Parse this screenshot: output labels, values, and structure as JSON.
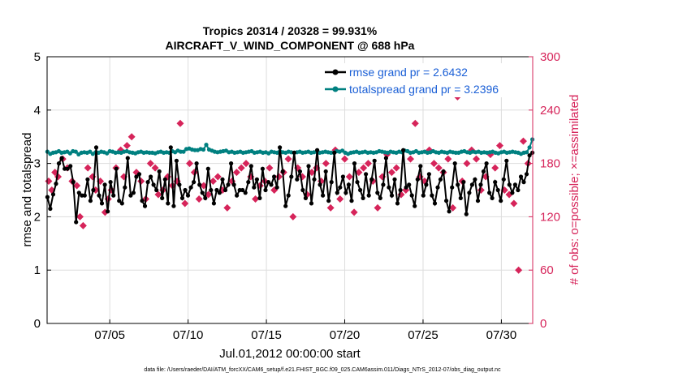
{
  "chart_data": {
    "type": "line",
    "title_line1": "Tropics 20314 / 20328 = 99.931%",
    "title_line2": "AIRCRAFT_V_WIND_COMPONENT @ 688 hPa",
    "xlabel": "Jul.01,2012 00:00:00 start",
    "ylabel_left": "rmse and totalspread",
    "ylabel_right": "# of obs: o=possible; ×=assimilated",
    "footer": "data file: /Users/raeder/DAI/ATM_forcXX/CAM6_setup/f.e21.FHIST_BGC.f09_025.CAM6assim.011/Diags_NTrS_2012-07/obs_diag_output.nc",
    "xlim": [
      1.0,
      32.0
    ],
    "ylim_left": [
      0,
      5
    ],
    "ylim_right": [
      0,
      300
    ],
    "x_ticks": [
      5,
      10,
      15,
      20,
      25,
      30
    ],
    "x_tick_labels": [
      "07/05",
      "07/10",
      "07/15",
      "07/20",
      "07/25",
      "07/30"
    ],
    "y_left_ticks": [
      "0",
      "1",
      "2",
      "3",
      "4",
      "5"
    ],
    "y_right_ticks": [
      "0",
      "60",
      "120",
      "180",
      "240",
      "300"
    ],
    "legend": {
      "rmse_label": "rmse grand pr = 2.6432",
      "spread_label": "totalspread grand pr = 3.2396"
    },
    "colors": {
      "rmse": "#000000",
      "spread": "#008080",
      "obs": "#d6245a",
      "legend_text": "#1a5fd6"
    },
    "series": [
      {
        "name": "rmse",
        "values": [
          2.37,
          2.15,
          2.42,
          2.62,
          3.0,
          3.1,
          2.9,
          2.9,
          2.95,
          2.65,
          1.9,
          2.45,
          2.4,
          2.4,
          2.7,
          2.3,
          2.5,
          3.3,
          2.4,
          2.25,
          2.6,
          2.1,
          2.65,
          2.4,
          2.9,
          2.3,
          2.25,
          2.55,
          3.1,
          2.4,
          2.45,
          2.75,
          2.8,
          2.3,
          2.2,
          2.65,
          2.75,
          2.6,
          2.5,
          2.85,
          2.35,
          2.7,
          2.25,
          3.3,
          2.2,
          3.05,
          2.6,
          2.35,
          2.5,
          2.4,
          2.55,
          2.65,
          3.0,
          2.6,
          2.45,
          2.35,
          2.9,
          2.5,
          2.25,
          2.5,
          2.45,
          2.7,
          2.5,
          2.6,
          3.0,
          2.6,
          2.4,
          2.5,
          2.5,
          2.45,
          2.65,
          2.95,
          2.55,
          2.7,
          2.35,
          2.9,
          2.5,
          2.65,
          2.6,
          2.75,
          2.55,
          3.3,
          2.85,
          2.2,
          2.4,
          2.75,
          3.2,
          2.7,
          2.85,
          2.5,
          2.35,
          2.95,
          2.25,
          2.7,
          3.25,
          2.6,
          2.4,
          2.85,
          2.3,
          2.65,
          3.2,
          2.45,
          2.55,
          2.75,
          2.45,
          2.6,
          2.3,
          3.0,
          2.65,
          2.5,
          2.35,
          2.8,
          2.4,
          2.7,
          3.05,
          2.45,
          2.35,
          2.6,
          3.1,
          2.55,
          2.4,
          2.7,
          2.25,
          2.5,
          3.25,
          2.55,
          2.6,
          2.4,
          2.2,
          2.7,
          2.95,
          2.4,
          2.6,
          2.8,
          2.4,
          2.25,
          2.55,
          2.7,
          2.85,
          2.3,
          2.1,
          2.55,
          3.0,
          2.6,
          2.35,
          2.65,
          2.05,
          2.45,
          2.6,
          2.7,
          2.3,
          2.6,
          2.85,
          3.0,
          2.45,
          2.35,
          2.65,
          2.5,
          2.3,
          2.7,
          3.05,
          2.6,
          2.45,
          2.6,
          2.5,
          2.75,
          2.65,
          2.8,
          3.15,
          3.2
        ]
      },
      {
        "name": "totalspread",
        "values": [
          3.22,
          3.18,
          3.2,
          3.21,
          3.23,
          3.2,
          3.21,
          3.22,
          3.19,
          3.23,
          3.22,
          3.17,
          3.2,
          3.21,
          3.2,
          3.22,
          3.18,
          3.21,
          3.2,
          3.22,
          3.21,
          3.19,
          3.23,
          3.22,
          3.2,
          3.21,
          3.2,
          3.22,
          3.23,
          3.21,
          3.2,
          3.19,
          3.21,
          3.22,
          3.2,
          3.21,
          3.2,
          3.2,
          3.19,
          3.21,
          3.22,
          3.2,
          3.21,
          3.2,
          3.23,
          3.21,
          3.24,
          3.22,
          3.22,
          3.27,
          3.28,
          3.26,
          3.25,
          3.25,
          3.27,
          3.26,
          3.35,
          3.26,
          3.24,
          3.22,
          3.21,
          3.22,
          3.23,
          3.24,
          3.21,
          3.22,
          3.2,
          3.21,
          3.22,
          3.2,
          3.21,
          3.22,
          3.23,
          3.2,
          3.21,
          3.22,
          3.2,
          3.21,
          3.19,
          3.22,
          3.21,
          3.2,
          3.23,
          3.21,
          3.2,
          3.22,
          3.21,
          3.2,
          3.21,
          3.22,
          3.2,
          3.21,
          3.22,
          3.2,
          3.21,
          3.22,
          3.2,
          3.21,
          3.22,
          3.21,
          3.2,
          3.2,
          3.23,
          3.22,
          3.24,
          3.2,
          3.18,
          3.2,
          3.21,
          3.22,
          3.2,
          3.21,
          3.22,
          3.2,
          3.21,
          3.2,
          3.21,
          3.23,
          3.22,
          3.21,
          3.2,
          3.22,
          3.21,
          3.2,
          3.22,
          3.21,
          3.24,
          3.23,
          3.2,
          3.21,
          3.23,
          3.2,
          3.21,
          3.22,
          3.2,
          3.21,
          3.23,
          3.21,
          3.2,
          3.22,
          3.21,
          3.2,
          3.22,
          3.21,
          3.2,
          3.2,
          3.22,
          3.23,
          3.21,
          3.2,
          3.22,
          3.21,
          3.22,
          3.2,
          3.21,
          3.2,
          3.21,
          3.22,
          3.2,
          3.19,
          3.21,
          3.22,
          3.2,
          3.21,
          3.22,
          3.21,
          3.2,
          3.18,
          3.2,
          3.21,
          3.3,
          3.45
        ]
      },
      {
        "name": "obs_assimilated",
        "x": [
          1.1,
          1.3,
          1.5,
          1.7,
          2.0,
          2.3,
          2.6,
          2.9,
          3.1,
          3.3,
          3.6,
          3.9,
          4.1,
          4.4,
          4.7,
          4.9,
          5.1,
          5.4,
          5.7,
          5.9,
          6.1,
          6.4,
          6.7,
          7.0,
          7.3,
          7.6,
          7.9,
          8.1,
          8.4,
          8.7,
          9.0,
          9.3,
          9.5,
          9.8,
          10.1,
          10.4,
          10.7,
          11.0,
          11.3,
          11.6,
          11.9,
          12.2,
          12.5,
          12.8,
          13.1,
          13.4,
          13.7,
          14.0,
          14.3,
          14.6,
          14.9,
          15.2,
          15.5,
          15.8,
          16.1,
          16.4,
          16.7,
          17.0,
          17.3,
          17.6,
          17.9,
          18.2,
          18.5,
          18.8,
          19.1,
          19.4,
          19.7,
          20.0,
          20.3,
          20.6,
          20.9,
          21.2,
          21.5,
          21.8,
          22.1,
          22.4,
          22.7,
          23.0,
          23.3,
          23.6,
          23.9,
          24.2,
          24.5,
          24.8,
          25.1,
          25.4,
          25.7,
          26.0,
          26.3,
          26.6,
          26.9,
          27.2,
          27.5,
          27.8,
          28.1,
          28.4,
          28.7,
          29.0,
          29.3,
          29.6,
          29.9,
          30.2,
          30.5,
          30.8,
          31.1,
          31.4,
          31.7
        ],
        "values": [
          160,
          150,
          170,
          165,
          185,
          175,
          160,
          155,
          120,
          110,
          175,
          165,
          150,
          160,
          125,
          140,
          150,
          175,
          195,
          165,
          200,
          210,
          170,
          160,
          140,
          180,
          175,
          145,
          150,
          165,
          155,
          160,
          225,
          135,
          180,
          170,
          140,
          155,
          145,
          160,
          165,
          150,
          130,
          160,
          170,
          175,
          180,
          165,
          140,
          155,
          160,
          175,
          150,
          165,
          170,
          185,
          120,
          175,
          165,
          145,
          170,
          175,
          160,
          180,
          130,
          195,
          140,
          185,
          165,
          125,
          170,
          175,
          180,
          160,
          130,
          165,
          190,
          170,
          175,
          145,
          150,
          185,
          225,
          165,
          160,
          195,
          180,
          175,
          170,
          185,
          130,
          255,
          160,
          180,
          195,
          185,
          150,
          165,
          190,
          175,
          200,
          150,
          145,
          135,
          60,
          205,
          180
        ]
      }
    ]
  }
}
